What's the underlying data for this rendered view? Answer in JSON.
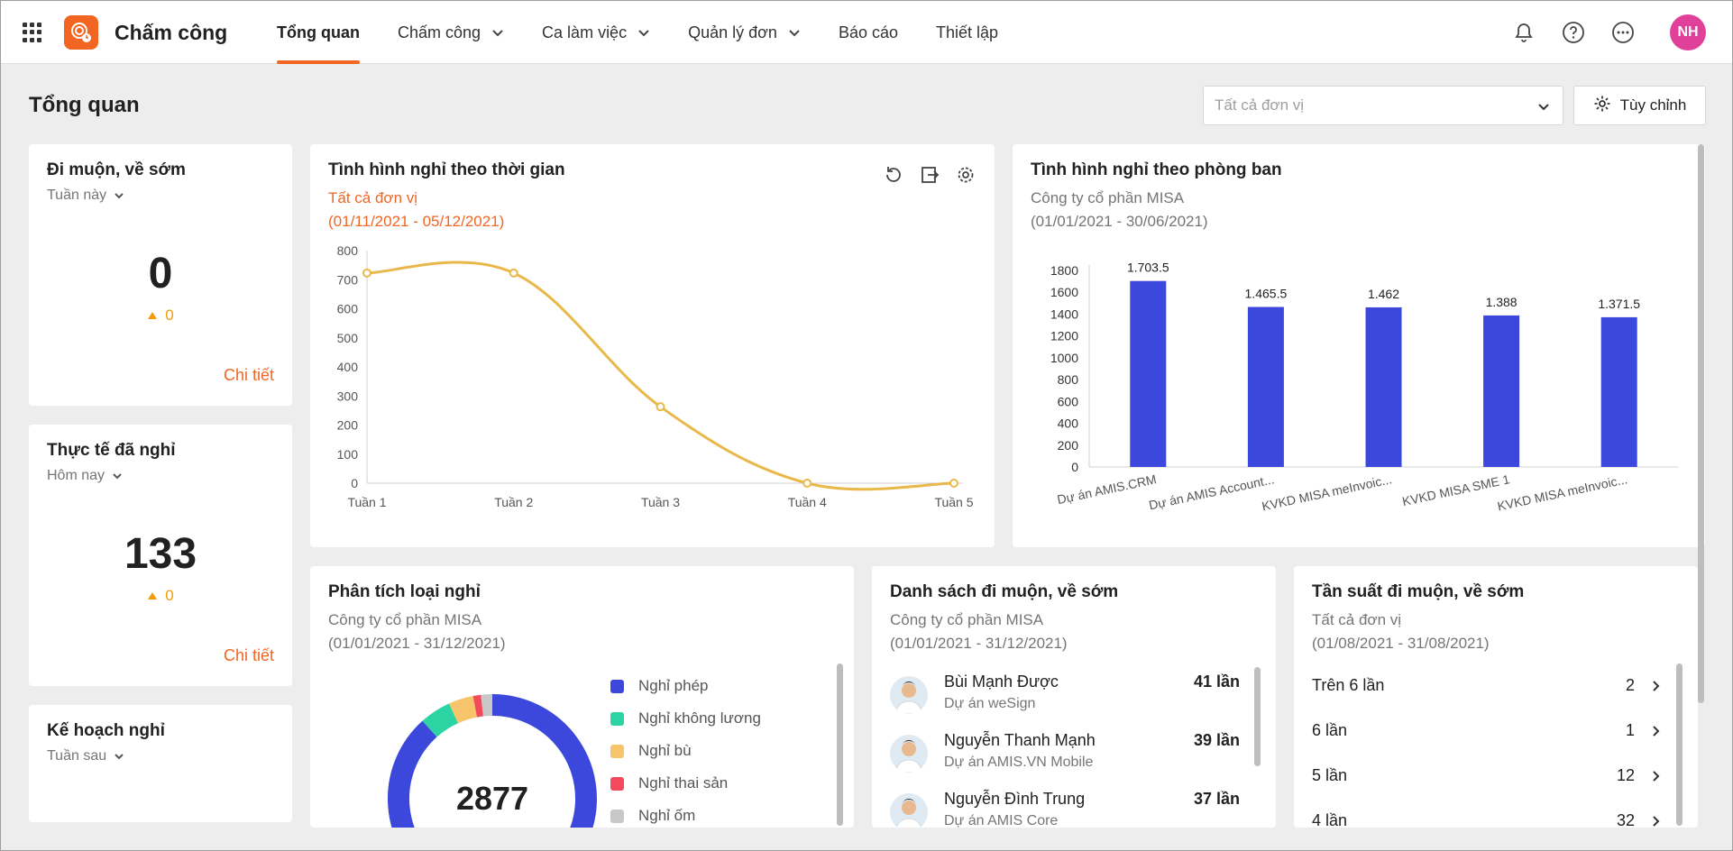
{
  "app": {
    "title": "Chấm công"
  },
  "nav": [
    {
      "label": "Tổng quan",
      "active": true,
      "dropdown": false
    },
    {
      "label": "Chấm công",
      "active": false,
      "dropdown": true
    },
    {
      "label": "Ca làm việc",
      "active": false,
      "dropdown": true
    },
    {
      "label": "Quản lý đơn",
      "active": false,
      "dropdown": true
    },
    {
      "label": "Báo cáo",
      "active": false,
      "dropdown": false
    },
    {
      "label": "Thiết lập",
      "active": false,
      "dropdown": false
    }
  ],
  "user": {
    "initials": "NH"
  },
  "page": {
    "title": "Tổng quan",
    "unit_placeholder": "Tất cả đơn vị",
    "customize_label": "Tùy chỉnh"
  },
  "kpi": [
    {
      "title": "Đi muộn, về sớm",
      "period": "Tuần này",
      "value": "0",
      "delta": "0",
      "link": "Chi tiết"
    },
    {
      "title": "Thực tế đã nghỉ",
      "period": "Hôm nay",
      "value": "133",
      "delta": "0",
      "link": "Chi tiết"
    },
    {
      "title": "Kế hoạch nghỉ",
      "period": "Tuần sau",
      "value": "",
      "delta": "",
      "link": ""
    }
  ],
  "leave_time": {
    "title": "Tình hình nghỉ theo thời gian",
    "unit": "Tất cả đơn vị",
    "range": "(01/11/2021 - 05/12/2021)"
  },
  "leave_dept": {
    "title": "Tình hình nghỉ theo phòng ban",
    "company": "Công ty cổ phần MISA",
    "range": "(01/01/2021 - 30/06/2021)"
  },
  "leave_type": {
    "title": "Phân tích loại nghỉ",
    "company": "Công ty cổ phần MISA",
    "range": "(01/01/2021 - 31/12/2021)",
    "total": "2877"
  },
  "late_list": {
    "title": "Danh sách đi muộn, về sớm",
    "company": "Công ty cổ phần MISA",
    "range": "(01/01/2021 - 31/12/2021)",
    "people": [
      {
        "name": "Bùi Mạnh Được",
        "dept": "Dự án weSign",
        "count": "41 lần"
      },
      {
        "name": "Nguyễn Thanh Mạnh",
        "dept": "Dự án AMIS.VN Mobile",
        "count": "39 lần"
      },
      {
        "name": "Nguyễn Đình Trung",
        "dept": "Dự án AMIS Core",
        "count": "37 lần"
      }
    ]
  },
  "late_freq": {
    "title": "Tần suất đi muộn, về sớm",
    "unit": "Tất cả đơn vị",
    "range": "(01/08/2021 - 31/08/2021)",
    "rows": [
      {
        "label": "Trên 6 lần",
        "value": "2"
      },
      {
        "label": "6 lần",
        "value": "1"
      },
      {
        "label": "5 lần",
        "value": "12"
      },
      {
        "label": "4 lần",
        "value": "32"
      }
    ]
  },
  "chart_data": [
    {
      "type": "line",
      "categories": [
        "Tuần 1",
        "Tuần 2",
        "Tuần 3",
        "Tuần 4",
        "Tuần 5"
      ],
      "values": [
        723,
        723,
        263,
        0,
        0
      ],
      "ylim": [
        0,
        800
      ],
      "yticks": [
        0,
        100,
        200,
        300,
        400,
        500,
        600,
        700,
        800
      ],
      "color": "#e9b84a"
    },
    {
      "type": "bar",
      "categories": [
        "Dự án AMIS.CRM",
        "Dự án AMIS Account...",
        "KVKD MISA meInvoic...",
        "KVKD MISA SME 1",
        "KVKD MISA meInvoic..."
      ],
      "values": [
        1703.5,
        1465.5,
        1462,
        1388,
        1371.5
      ],
      "data_labels": [
        "1.703.5",
        "1.465.5",
        "1.462",
        "1.388",
        "1.371.5"
      ],
      "ylim": [
        0,
        1800
      ],
      "yticks": [
        0,
        200,
        400,
        600,
        800,
        1000,
        1200,
        1400,
        1600,
        1800
      ],
      "color": "#3c47dc"
    },
    {
      "type": "pie",
      "labels": [
        "Nghỉ phép",
        "Nghỉ không lương",
        "Nghỉ bù",
        "Nghỉ thai sản",
        "Nghỉ ốm"
      ],
      "values": [
        2542,
        140,
        110,
        35,
        50
      ],
      "colors": [
        "#3c47dc",
        "#2dd4a3",
        "#f5c46b",
        "#f2495c",
        "#c8c8c8"
      ],
      "total": "2877"
    }
  ]
}
